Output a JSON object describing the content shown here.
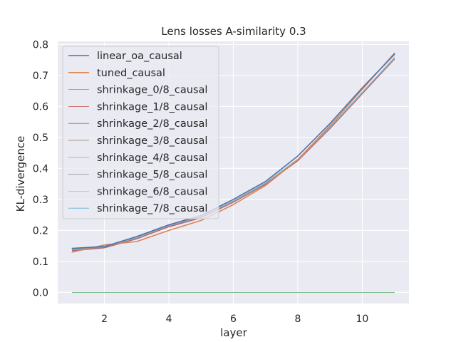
{
  "chart_data": {
    "type": "line",
    "title": "Lens losses A-similarity 0.3",
    "xlabel": "layer",
    "ylabel": "KL-divergence",
    "xlim": [
      0.55,
      11.45
    ],
    "ylim": [
      -0.036,
      0.81
    ],
    "xticks": [
      2,
      4,
      6,
      8,
      10
    ],
    "yticks": [
      0.0,
      0.1,
      0.2,
      0.3,
      0.4,
      0.5,
      0.6,
      0.7,
      0.8
    ],
    "ytick_labels": [
      "0.0",
      "0.1",
      "0.2",
      "0.3",
      "0.4",
      "0.5",
      "0.6",
      "0.7",
      "0.8"
    ],
    "grid": true,
    "legend_position": "upper-left",
    "x": [
      1,
      2,
      3,
      4,
      5,
      6,
      7,
      8,
      9,
      10,
      11
    ],
    "series": [
      {
        "name": "linear_oa_causal",
        "color": "#4c72b0",
        "width": 1.6,
        "values": [
          0.142,
          0.148,
          0.18,
          0.218,
          0.248,
          0.3,
          0.358,
          0.44,
          0.545,
          0.66,
          0.768
        ]
      },
      {
        "name": "tuned_causal",
        "color": "#dd8452",
        "width": 1.6,
        "values": [
          0.13,
          0.153,
          0.164,
          0.2,
          0.232,
          0.283,
          0.345,
          0.428,
          0.538,
          0.655,
          0.772
        ]
      },
      {
        "name": "shrinkage_0/8_causal",
        "color": "#55a868",
        "width": 0.8,
        "values": [
          0.0,
          0.0,
          0.0,
          0.0,
          0.0,
          0.0,
          0.0,
          0.0,
          0.0,
          0.0,
          0.0
        ]
      },
      {
        "name": "shrinkage_1/8_causal",
        "color": "#c44e52",
        "width": 0.8,
        "values": [
          0.134,
          0.143,
          0.172,
          0.211,
          0.24,
          0.29,
          0.348,
          0.424,
          0.528,
          0.64,
          0.752
        ]
      },
      {
        "name": "shrinkage_2/8_causal",
        "color": "#8172b3",
        "width": 0.8,
        "values": [
          0.135,
          0.144,
          0.173,
          0.212,
          0.241,
          0.291,
          0.349,
          0.425,
          0.529,
          0.641,
          0.753
        ]
      },
      {
        "name": "shrinkage_3/8_causal",
        "color": "#937860",
        "width": 0.8,
        "values": [
          0.136,
          0.145,
          0.174,
          0.213,
          0.242,
          0.292,
          0.35,
          0.426,
          0.53,
          0.642,
          0.754
        ]
      },
      {
        "name": "shrinkage_4/8_causal",
        "color": "#da8bc3",
        "width": 0.8,
        "values": [
          0.137,
          0.146,
          0.175,
          0.214,
          0.243,
          0.293,
          0.351,
          0.427,
          0.531,
          0.643,
          0.755
        ]
      },
      {
        "name": "shrinkage_5/8_causal",
        "color": "#8c8c8c",
        "width": 0.8,
        "values": [
          0.138,
          0.146,
          0.176,
          0.215,
          0.244,
          0.294,
          0.352,
          0.428,
          0.532,
          0.644,
          0.756
        ]
      },
      {
        "name": "shrinkage_6/8_causal",
        "color": "#ccb974",
        "width": 0.8,
        "values": [
          0.139,
          0.147,
          0.177,
          0.216,
          0.245,
          0.295,
          0.353,
          0.429,
          0.533,
          0.645,
          0.757
        ]
      },
      {
        "name": "shrinkage_7/8_causal",
        "color": "#64b5cd",
        "width": 0.8,
        "values": [
          0.14,
          0.147,
          0.178,
          0.217,
          0.246,
          0.296,
          0.354,
          0.43,
          0.534,
          0.646,
          0.758
        ]
      }
    ]
  }
}
